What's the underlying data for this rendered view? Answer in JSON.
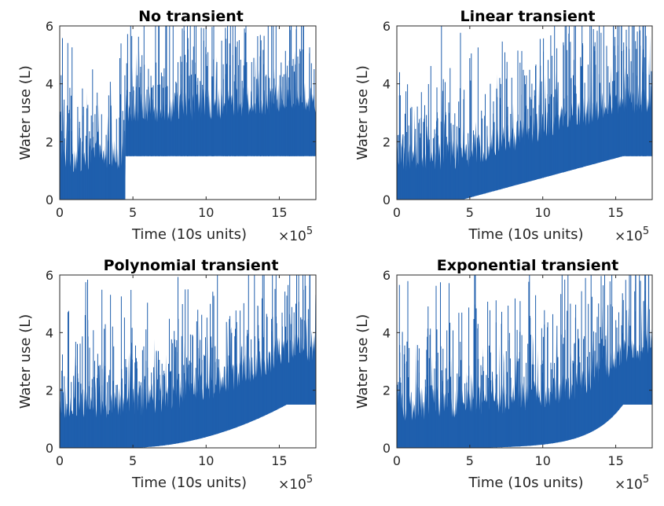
{
  "figure": {
    "x_multiplier_base": "×10",
    "x_multiplier_exp": "5",
    "series_color": "#1f5fad"
  },
  "chart_data": [
    {
      "type": "area",
      "title": "No transient",
      "transient": "none",
      "xlabel": "Time (10s units)",
      "ylabel": "Water use (L)",
      "xlim": [
        0,
        1750000
      ],
      "ylim": [
        0,
        6
      ],
      "xticks": [
        0,
        5,
        10,
        15
      ],
      "yticks": [
        0,
        2,
        4,
        6
      ],
      "baseline_start": 450000,
      "baseline_end": 1550000,
      "baseline_level": 1.5,
      "grid": false
    },
    {
      "type": "area",
      "title": "Linear transient",
      "transient": "linear",
      "xlabel": "Time (10s units)",
      "ylabel": "Water use (L)",
      "xlim": [
        0,
        1750000
      ],
      "ylim": [
        0,
        6
      ],
      "xticks": [
        0,
        5,
        10,
        15
      ],
      "yticks": [
        0,
        2,
        4,
        6
      ],
      "baseline_start": 450000,
      "baseline_end": 1550000,
      "baseline_level": 1.5,
      "grid": false
    },
    {
      "type": "area",
      "title": "Polynomial transient",
      "transient": "polynomial",
      "xlabel": "Time (10s units)",
      "ylabel": "Water use (L)",
      "xlim": [
        0,
        1750000
      ],
      "ylim": [
        0,
        6
      ],
      "xticks": [
        0,
        5,
        10,
        15
      ],
      "yticks": [
        0,
        2,
        4,
        6
      ],
      "baseline_start": 450000,
      "baseline_end": 1550000,
      "baseline_level": 1.5,
      "grid": false
    },
    {
      "type": "area",
      "title": "Exponential transient",
      "transient": "exponential",
      "xlabel": "Time (10s units)",
      "ylabel": "Water use (L)",
      "xlim": [
        0,
        1750000
      ],
      "ylim": [
        0,
        6
      ],
      "xticks": [
        0,
        5,
        10,
        15
      ],
      "yticks": [
        0,
        2,
        4,
        6
      ],
      "baseline_start": 450000,
      "baseline_end": 1550000,
      "baseline_level": 1.5,
      "grid": false
    }
  ]
}
